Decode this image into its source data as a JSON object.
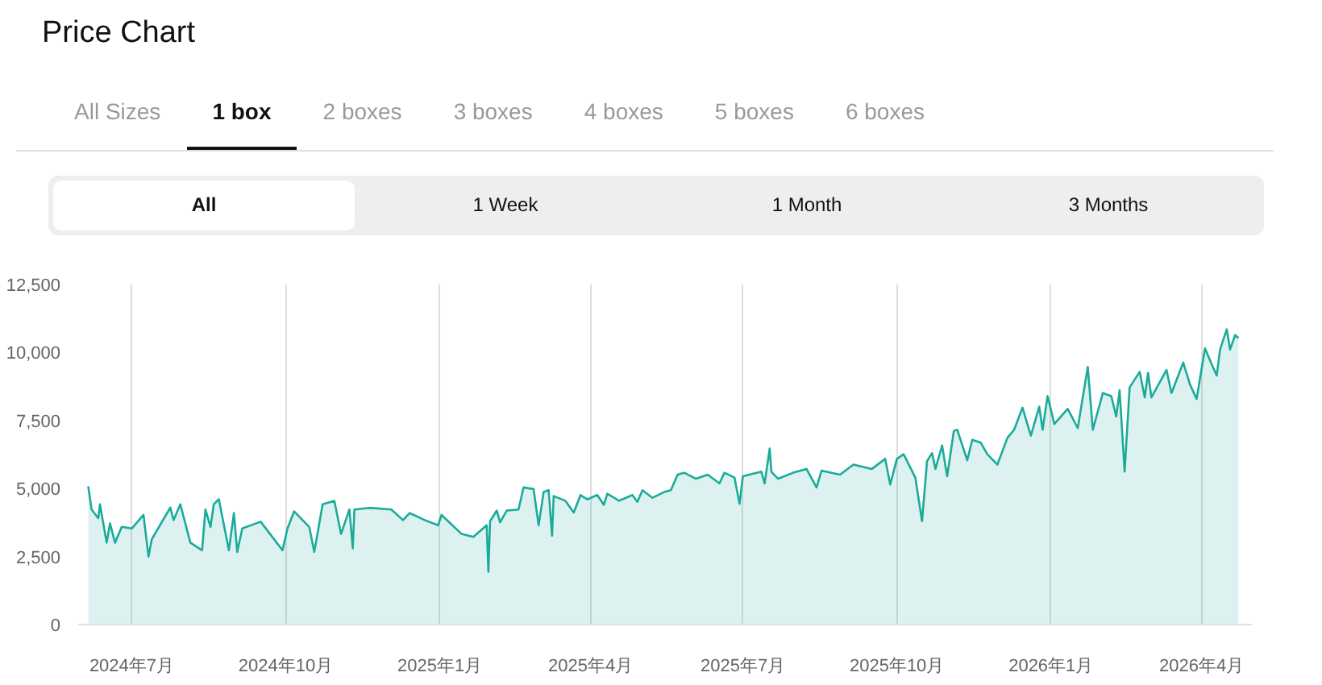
{
  "chart_data": {
    "type": "area",
    "title": "Price Chart",
    "annotations": [
      "All Sizes",
      "1 box",
      "2 boxes",
      "3 boxes",
      "4 boxes",
      "5 boxes",
      "6 boxes",
      "All",
      "1 Week",
      "1 Month",
      "3 Months"
    ],
    "x": [
      "2024-06-05",
      "2024-06-07",
      "2024-06-11",
      "2024-06-12",
      "2024-06-16",
      "2024-06-18",
      "2024-06-21",
      "2024-06-25",
      "2024-07-01",
      "2024-07-08",
      "2024-07-11",
      "2024-07-13",
      "2024-07-24",
      "2024-07-26",
      "2024-07-30",
      "2024-08-05",
      "2024-08-12",
      "2024-08-14",
      "2024-08-17",
      "2024-08-19",
      "2024-08-22",
      "2024-08-28",
      "2024-08-31",
      "2024-09-02",
      "2024-09-05",
      "2024-09-16",
      "2024-09-29",
      "2024-10-02",
      "2024-10-06",
      "2024-10-15",
      "2024-10-18",
      "2024-10-21",
      "2024-10-23",
      "2024-10-30",
      "2024-11-03",
      "2024-11-08",
      "2024-11-10",
      "2024-11-11",
      "2024-11-20",
      "2024-12-03",
      "2024-12-10",
      "2024-12-14",
      "2024-12-23",
      "2024-12-31",
      "2025-01-02",
      "2025-01-14",
      "2025-01-21",
      "2025-01-29",
      "2025-01-30",
      "2025-01-31",
      "2025-02-04",
      "2025-02-06",
      "2025-02-10",
      "2025-02-17",
      "2025-02-20",
      "2025-02-26",
      "2025-03-01",
      "2025-03-04",
      "2025-03-07",
      "2025-03-09",
      "2025-03-10",
      "2025-03-17",
      "2025-03-22",
      "2025-03-26",
      "2025-03-30",
      "2025-04-05",
      "2025-04-09",
      "2025-04-11",
      "2025-04-18",
      "2025-04-26",
      "2025-04-29",
      "2025-05-02",
      "2025-05-08",
      "2025-05-15",
      "2025-05-19",
      "2025-05-23",
      "2025-05-27",
      "2025-06-03",
      "2025-06-10",
      "2025-06-17",
      "2025-06-20",
      "2025-06-26",
      "2025-06-29",
      "2025-07-01",
      "2025-07-12",
      "2025-07-14",
      "2025-07-17",
      "2025-07-18",
      "2025-07-22",
      "2025-07-31",
      "2025-08-08",
      "2025-08-14",
      "2025-08-17",
      "2025-08-28",
      "2025-09-05",
      "2025-09-16",
      "2025-09-24",
      "2025-09-27",
      "2025-10-01",
      "2025-10-05",
      "2025-10-12",
      "2025-10-16",
      "2025-10-19",
      "2025-10-22",
      "2025-10-24",
      "2025-10-28",
      "2025-10-31",
      "2025-11-04",
      "2025-11-06",
      "2025-11-12",
      "2025-11-15",
      "2025-11-20",
      "2025-11-24",
      "2025-11-30",
      "2025-12-06",
      "2025-12-10",
      "2025-12-15",
      "2025-12-20",
      "2025-12-25",
      "2025-12-27",
      "2025-12-30",
      "2026-01-03",
      "2026-01-11",
      "2026-01-17",
      "2026-01-23",
      "2026-01-26",
      "2026-02-01",
      "2026-02-06",
      "2026-02-09",
      "2026-02-11",
      "2026-02-14",
      "2026-02-17",
      "2026-02-23",
      "2026-02-26",
      "2026-02-28",
      "2026-03-02",
      "2026-03-11",
      "2026-03-14",
      "2026-03-21",
      "2026-03-25",
      "2026-03-29",
      "2026-04-03",
      "2026-04-07",
      "2026-04-10",
      "2026-04-12",
      "2026-04-16",
      "2026-04-18",
      "2026-04-21",
      "2026-04-23"
    ],
    "series": [
      {
        "color": "#1aab9b",
        "values": [
          5080,
          4230,
          3910,
          4420,
          3010,
          3720,
          3010,
          3590,
          3530,
          4030,
          2500,
          3140,
          4300,
          3840,
          4420,
          3010,
          2730,
          4230,
          3590,
          4420,
          4610,
          2730,
          4100,
          2670,
          3530,
          3780,
          2730,
          3530,
          4160,
          3590,
          2670,
          3720,
          4420,
          4550,
          3330,
          4230,
          2800,
          4230,
          4290,
          4230,
          3840,
          4100,
          3840,
          3650,
          4030,
          3330,
          3220,
          3650,
          1940,
          3800,
          4190,
          3760,
          4190,
          4230,
          5040,
          4980,
          3650,
          4870,
          4940,
          3270,
          4720,
          4550,
          4120,
          4760,
          4600,
          4760,
          4400,
          4810,
          4550,
          4760,
          4510,
          4940,
          4660,
          4870,
          4940,
          5510,
          5580,
          5360,
          5510,
          5190,
          5580,
          5400,
          4440,
          5450,
          5620,
          5190,
          6470,
          5620,
          5360,
          5580,
          5720,
          5040,
          5660,
          5510,
          5880,
          5720,
          6090,
          5150,
          6090,
          6260,
          5400,
          3800,
          6010,
          6300,
          5720,
          6580,
          5450,
          7120,
          7160,
          6040,
          6790,
          6690,
          6260,
          5880,
          6860,
          7160,
          7970,
          6940,
          8010,
          7160,
          8400,
          7370,
          7930,
          7220,
          9470,
          7160,
          8510,
          8400,
          7650,
          8610,
          5620,
          8720,
          9290,
          8350,
          9250,
          8350,
          9360,
          8510,
          9630,
          8830,
          8290,
          10150,
          9570,
          9150,
          10110,
          10850,
          10110,
          10640,
          10530
        ]
      }
    ],
    "xlim": [
      "2024-05-30",
      "2026-05-01"
    ],
    "xticks": [
      {
        "value": "2024-07-01",
        "label": "2024年7月"
      },
      {
        "value": "2024-10-01",
        "label": "2024年10月"
      },
      {
        "value": "2025-01-01",
        "label": "2025年1月"
      },
      {
        "value": "2025-04-01",
        "label": "2025年4月"
      },
      {
        "value": "2025-07-01",
        "label": "2025年7月"
      },
      {
        "value": "2025-10-01",
        "label": "2025年10月"
      },
      {
        "value": "2026-01-01",
        "label": "2026年1月"
      },
      {
        "value": "2026-04-01",
        "label": "2026年4月"
      }
    ],
    "ylim": [
      0,
      12500
    ],
    "yticks": [
      0,
      {
        "value": 2500,
        "label": "2,500"
      },
      {
        "value": 5000,
        "label": "5,000"
      },
      {
        "value": 7500,
        "label": "7,500"
      },
      {
        "value": 10000,
        "label": "10,000"
      },
      {
        "value": 12500,
        "label": "12,500"
      }
    ],
    "grid": "x"
  }
}
